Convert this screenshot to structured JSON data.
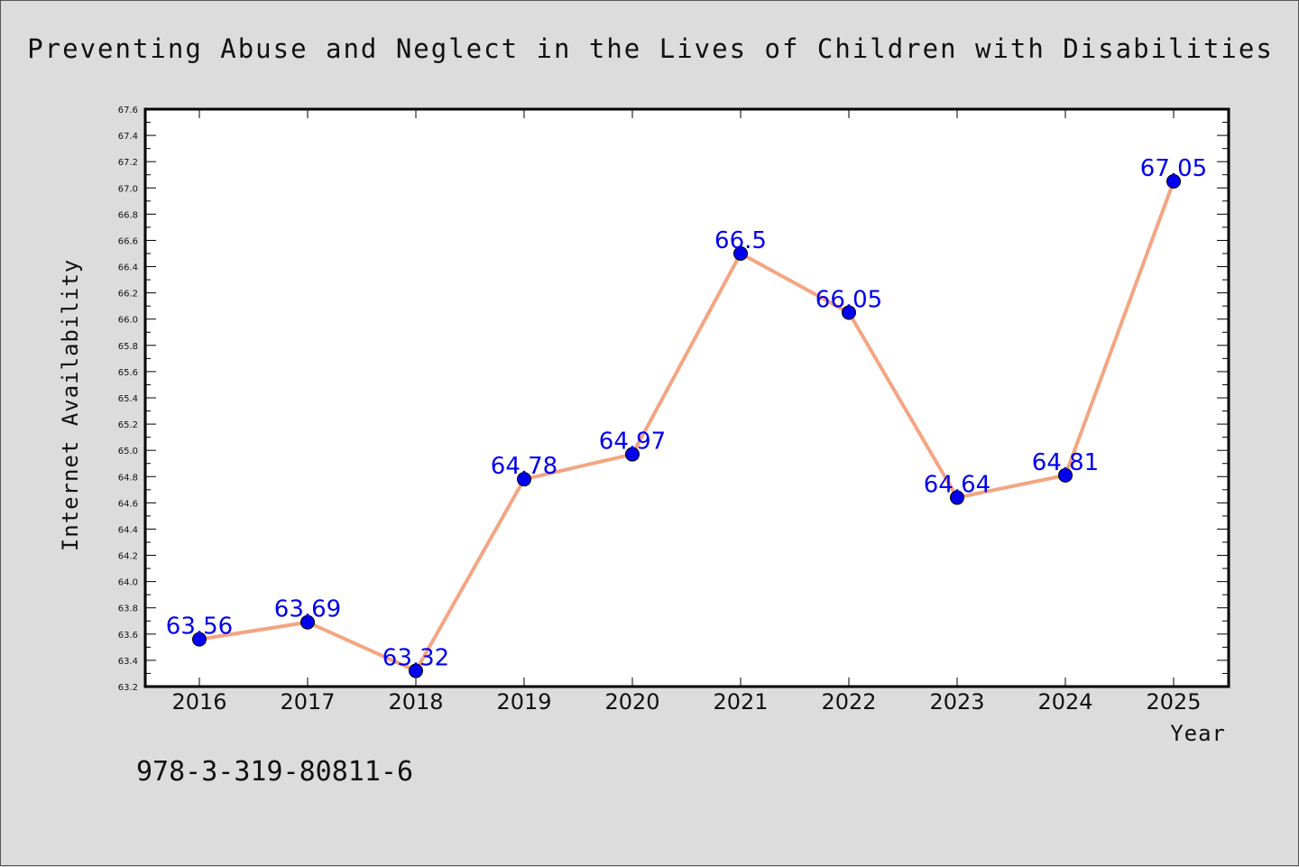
{
  "chart_data": {
    "type": "line",
    "title": "Preventing Abuse and Neglect in the Lives of Children with Disabilities",
    "xlabel": "Year",
    "ylabel": "Internet Availability",
    "categories": [
      "2016",
      "2017",
      "2018",
      "2019",
      "2020",
      "2021",
      "2022",
      "2023",
      "2024",
      "2025"
    ],
    "series": [
      {
        "values": [
          63.56,
          63.69,
          63.32,
          64.78,
          64.97,
          66.5,
          66.05,
          64.64,
          64.81,
          67.05
        ],
        "data_labels": [
          "63.56",
          "63.69",
          "63.32",
          "64.78",
          "64.97",
          "66.5",
          "66.05",
          "64.64",
          "64.81",
          "67.05"
        ]
      }
    ],
    "ylim": [
      63.2,
      67.6
    ],
    "yticks": [
      "63.2",
      "63.4",
      "63.6",
      "63.8",
      "64.0",
      "64.2",
      "64.4",
      "64.6",
      "64.8",
      "65.0",
      "65.2",
      "65.4",
      "65.6",
      "65.8",
      "66.0",
      "66.2",
      "66.4",
      "66.6",
      "66.8",
      "67.0",
      "67.2",
      "67.4",
      "67.6"
    ],
    "grid": false,
    "legend": "none",
    "line_color": "#f4a582",
    "marker_color": "#0000ee",
    "label_color": "#0000ee"
  },
  "annotation": {
    "isbn": "978-3-319-80811-6"
  }
}
